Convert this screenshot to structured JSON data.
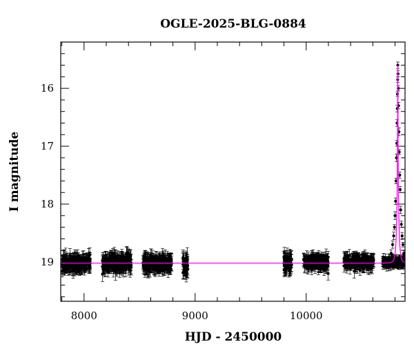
{
  "chart_data": {
    "type": "scatter",
    "title": "OGLE-2025-BLG-0884",
    "xlabel": "HJD - 2450000",
    "ylabel": "I magnitude",
    "xlim": [
      7790,
      10890
    ],
    "ylim": [
      19.68,
      15.2
    ],
    "y_inverted": true,
    "x_major_ticks": [
      8000,
      9000,
      10000
    ],
    "x_major_tick_labels": [
      "8000",
      "9000",
      "10000"
    ],
    "y_major_ticks": [
      16,
      17,
      18,
      19
    ],
    "y_major_tick_labels": [
      "16",
      "17",
      "18",
      "19"
    ],
    "grid": false,
    "legend": "none",
    "colors": {
      "data": "#000000",
      "model": "#ff00ff"
    },
    "observing_seasons": [
      {
        "x": [
          7800,
          8055
        ],
        "mag": 19.02,
        "scatter": 0.12,
        "err": 0.12
      },
      {
        "x": [
          8165,
          8425
        ],
        "mag": 19.02,
        "scatter": 0.12,
        "err": 0.12
      },
      {
        "x": [
          8530,
          8790
        ],
        "mag": 19.02,
        "scatter": 0.12,
        "err": 0.12
      },
      {
        "x": [
          8890,
          8935
        ],
        "mag": 19.05,
        "scatter": 0.16,
        "err": 0.14
      },
      {
        "x": [
          9800,
          9870
        ],
        "mag": 19.02,
        "scatter": 0.14,
        "err": 0.13
      },
      {
        "x": [
          9975,
          10200
        ],
        "mag": 19.0,
        "scatter": 0.1,
        "err": 0.1
      },
      {
        "x": [
          10340,
          10610
        ],
        "mag": 19.0,
        "scatter": 0.1,
        "err": 0.1
      },
      {
        "x": [
          10690,
          10890
        ],
        "mag": 19.0,
        "scatter": 0.06,
        "err": 0.08
      }
    ],
    "model": {
      "baseline_mag": 19.02,
      "peak_time": 10825,
      "peak_mag": 15.6,
      "einstein_time_days": 18
    },
    "peak_points": [
      {
        "x": 10750,
        "y": 18.98
      },
      {
        "x": 10765,
        "y": 18.85
      },
      {
        "x": 10778,
        "y": 18.7
      },
      {
        "x": 10788,
        "y": 18.55
      },
      {
        "x": 10795,
        "y": 18.4
      },
      {
        "x": 10800,
        "y": 18.2
      },
      {
        "x": 10805,
        "y": 17.95
      },
      {
        "x": 10809,
        "y": 17.6
      },
      {
        "x": 10813,
        "y": 17.2
      },
      {
        "x": 10816,
        "y": 16.95
      },
      {
        "x": 10818,
        "y": 16.6
      },
      {
        "x": 10820,
        "y": 16.35
      },
      {
        "x": 10822,
        "y": 16.1
      },
      {
        "x": 10824,
        "y": 15.85
      },
      {
        "x": 10825,
        "y": 15.6
      },
      {
        "x": 10827,
        "y": 15.75
      },
      {
        "x": 10829,
        "y": 16.0
      },
      {
        "x": 10832,
        "y": 16.3
      },
      {
        "x": 10835,
        "y": 16.75
      },
      {
        "x": 10838,
        "y": 17.1
      },
      {
        "x": 10842,
        "y": 17.5
      },
      {
        "x": 10846,
        "y": 17.75
      },
      {
        "x": 10851,
        "y": 18.1
      },
      {
        "x": 10857,
        "y": 18.35
      },
      {
        "x": 10864,
        "y": 18.55
      },
      {
        "x": 10871,
        "y": 18.7
      },
      {
        "x": 10879,
        "y": 18.85
      }
    ]
  }
}
